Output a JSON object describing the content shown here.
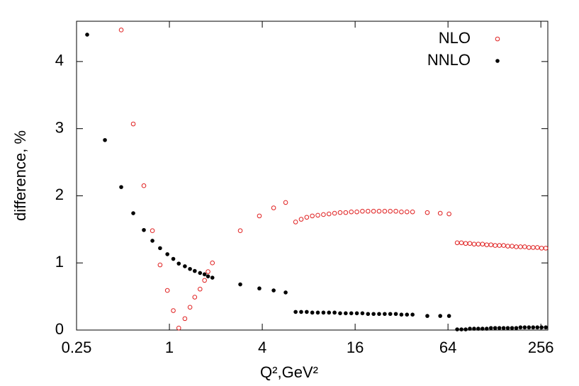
{
  "chart_data": {
    "type": "scatter",
    "x_label": "Q²,GeV²",
    "y_label": "difference, %",
    "xlim": [
      0.25,
      284
    ],
    "ylim": [
      0,
      4.6
    ],
    "log_x": true,
    "xticks": [
      0.25,
      1,
      4,
      16,
      64,
      256
    ],
    "yticks": [
      0,
      1,
      2,
      3,
      4
    ],
    "legend": "upper right",
    "series": [
      {
        "name": "NLO",
        "color": "#e02020",
        "marker": "open",
        "x": [
          0.487,
          0.583,
          0.683,
          0.776,
          0.87,
          0.97,
          1.06,
          1.15,
          1.26,
          1.36,
          1.46,
          1.58,
          1.69,
          1.78,
          1.9,
          2.88,
          3.83,
          4.74,
          5.67,
          6.58,
          7.15,
          7.77,
          8.44,
          9.17,
          9.97,
          10.83,
          11.77,
          12.79,
          13.9,
          15.11,
          16.42,
          17.84,
          19.39,
          21.07,
          22.89,
          24.88,
          27.03,
          29.38,
          31.92,
          34.69,
          37.7,
          47,
          57,
          65,
          73.4,
          78.2,
          83.3,
          88.7,
          94.5,
          100.6,
          107.1,
          114.1,
          121.5,
          129.4,
          137.8,
          146.8,
          156.3,
          166.5,
          177.3,
          188.8,
          201.1,
          214.2,
          228.1,
          242.9,
          258.7,
          275.5
        ],
        "values": [
          4.47,
          3.07,
          2.15,
          1.48,
          0.97,
          0.59,
          0.29,
          0.03,
          0.17,
          0.34,
          0.49,
          0.61,
          0.74,
          0.87,
          1.0,
          1.48,
          1.7,
          1.82,
          1.9,
          1.61,
          1.65,
          1.68,
          1.7,
          1.71,
          1.72,
          1.73,
          1.74,
          1.75,
          1.75,
          1.76,
          1.76,
          1.77,
          1.77,
          1.77,
          1.77,
          1.77,
          1.77,
          1.77,
          1.76,
          1.76,
          1.76,
          1.75,
          1.74,
          1.73,
          1.3,
          1.3,
          1.29,
          1.29,
          1.28,
          1.28,
          1.28,
          1.27,
          1.27,
          1.26,
          1.26,
          1.26,
          1.25,
          1.25,
          1.24,
          1.24,
          1.24,
          1.23,
          1.23,
          1.23,
          1.22,
          1.22
        ]
      },
      {
        "name": "NNLO",
        "color": "#000000",
        "marker": "filled",
        "x": [
          0.293,
          0.382,
          0.487,
          0.583,
          0.683,
          0.776,
          0.87,
          0.97,
          1.06,
          1.15,
          1.26,
          1.36,
          1.46,
          1.58,
          1.69,
          1.78,
          1.9,
          2.88,
          3.83,
          4.74,
          5.67,
          6.58,
          7.15,
          7.77,
          8.44,
          9.17,
          9.97,
          10.83,
          11.77,
          12.79,
          13.9,
          15.11,
          16.42,
          17.84,
          19.39,
          21.07,
          22.89,
          24.88,
          27.03,
          29.38,
          31.92,
          34.69,
          37.7,
          47,
          57,
          65,
          73.4,
          78.2,
          83.3,
          88.7,
          94.5,
          100.6,
          107.1,
          114.1,
          121.5,
          129.4,
          137.8,
          146.8,
          156.3,
          166.5,
          177.3,
          188.8,
          201.1,
          214.2,
          228.1,
          242.9,
          258.7,
          275.5
        ],
        "values": [
          4.4,
          2.83,
          2.13,
          1.74,
          1.49,
          1.33,
          1.22,
          1.13,
          1.06,
          0.99,
          0.95,
          0.91,
          0.88,
          0.85,
          0.83,
          0.8,
          0.78,
          0.68,
          0.62,
          0.59,
          0.56,
          0.27,
          0.27,
          0.27,
          0.26,
          0.26,
          0.26,
          0.26,
          0.26,
          0.25,
          0.25,
          0.25,
          0.25,
          0.25,
          0.24,
          0.24,
          0.24,
          0.24,
          0.24,
          0.24,
          0.23,
          0.23,
          0.23,
          0.21,
          0.21,
          0.21,
          0.01,
          0.01,
          0.01,
          0.02,
          0.02,
          0.02,
          0.02,
          0.02,
          0.03,
          0.03,
          0.03,
          0.03,
          0.03,
          0.03,
          0.03,
          0.04,
          0.04,
          0.04,
          0.04,
          0.04,
          0.04,
          0.04
        ]
      }
    ]
  }
}
